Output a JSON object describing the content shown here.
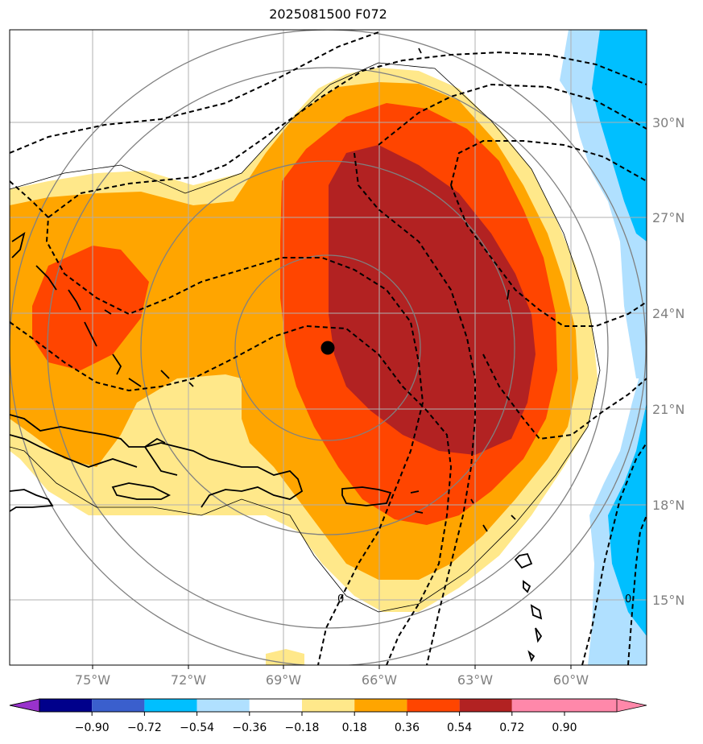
{
  "title": "2025081500 F072",
  "lon_labels": [
    "75°W",
    "72°W",
    "69°W",
    "66°W",
    "63°W",
    "60°W"
  ],
  "lat_labels": [
    "15°N",
    "18°N",
    "21°N",
    "24°N",
    "27°N",
    "30°N"
  ],
  "colorbar": {
    "tick_labels": [
      "−0.90",
      "−0.72",
      "−0.54",
      "−0.36",
      "−0.18",
      "0.18",
      "0.36",
      "0.54",
      "0.72",
      "0.90"
    ],
    "colors": [
      "#9932cc",
      "#00008b",
      "#3a5fcd",
      "#00bfff",
      "#b0e0ff",
      "#ffffff",
      "#ffe88a",
      "#ffa500",
      "#ff4500",
      "#b22222",
      "#ff88aa"
    ]
  },
  "contour_labels": [
    "0",
    "0"
  ],
  "center_marker": "storm-center-dot"
}
